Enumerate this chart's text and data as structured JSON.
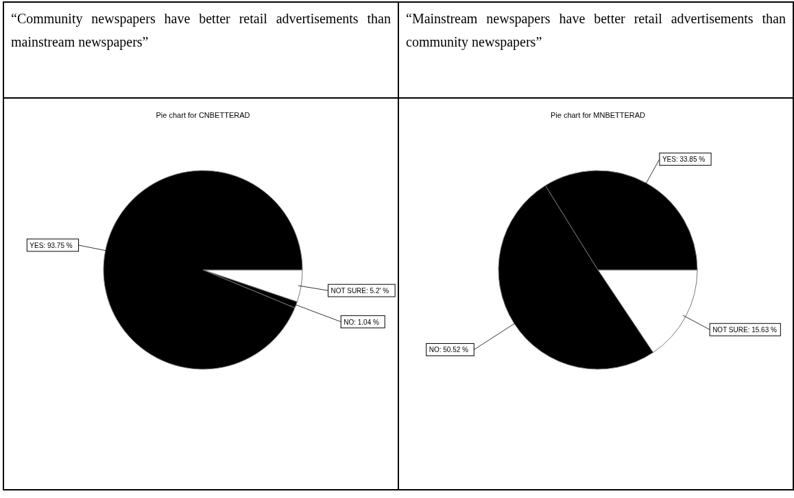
{
  "chart_data": [
    {
      "type": "pie",
      "subtitle": "“Community newspapers have better retail advertisements than mainstream newspapers”",
      "title": "Pie chart for CNBETTERAD",
      "categories": [
        "NOT SURE",
        "NO",
        "YES"
      ],
      "values": [
        5.21,
        1.04,
        93.75
      ],
      "colors": [
        "#ffffff",
        "#000000",
        "#000000"
      ],
      "value_labels": [
        "5.2' %",
        "1.04 %",
        "93.75 %"
      ]
    },
    {
      "type": "pie",
      "subtitle": "“Mainstream newspapers have better retail advertisements than community newspapers”",
      "title": "Pie chart for MNBETTERAD",
      "categories": [
        "NOT SURE",
        "NO",
        "YES"
      ],
      "values": [
        15.63,
        50.52,
        33.85
      ],
      "colors": [
        "#ffffff",
        "#000000",
        "#000000"
      ],
      "value_labels": [
        "15.63 %",
        "50.52 %",
        "33.85 %"
      ]
    }
  ]
}
